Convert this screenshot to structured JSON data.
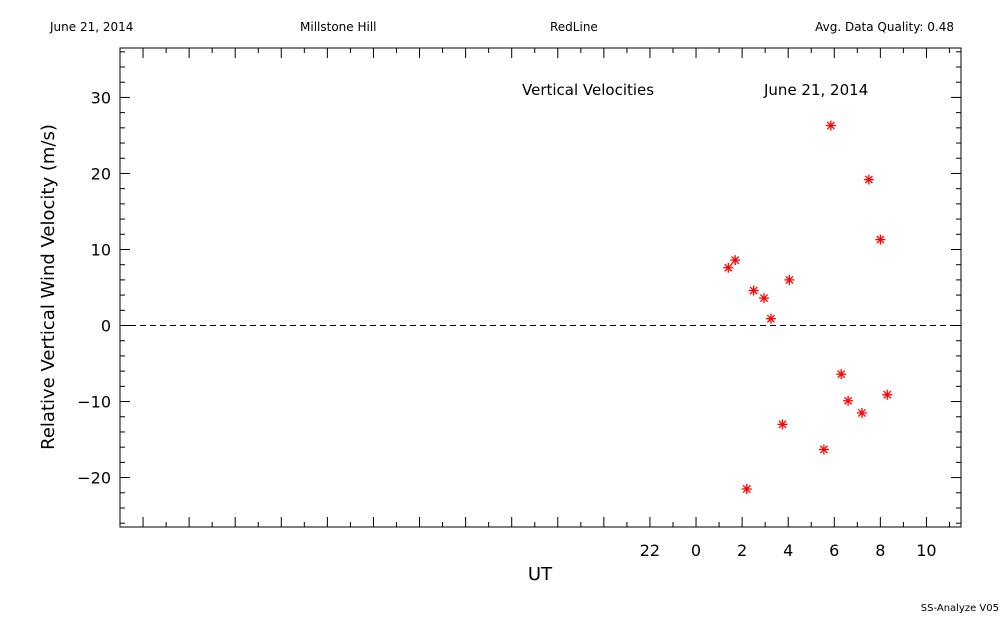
{
  "header": {
    "date": "June 21, 2014",
    "site": "Millstone Hill",
    "instrument": "RedLine",
    "quality": "Avg. Data Quality: 0.48"
  },
  "footer": {
    "software": "SS-Analyze V05"
  },
  "chart_data": {
    "type": "scatter",
    "title": "Vertical Velocities",
    "subtitle": "June 21, 2014",
    "xlabel": "UT",
    "ylabel": "Relative Vertical Wind Velocity (m/s)",
    "xlim": [
      -25,
      11.5
    ],
    "ylim": [
      -26.5,
      36.5
    ],
    "x_tick_values": [
      22,
      0,
      2,
      4,
      6,
      8,
      10
    ],
    "x_tick_labels": [
      "22",
      "0",
      "2",
      "4",
      "6",
      "8",
      "10"
    ],
    "y_ticks": [
      -20,
      -10,
      0,
      10,
      20,
      30
    ],
    "y_tick_labels": [
      "−20",
      "−10",
      "0",
      "10",
      "20",
      "30"
    ],
    "zero_line": "dashed",
    "marker": "asterisk",
    "marker_color": "#ff0000",
    "points": [
      {
        "x": 1.4,
        "y": 7.6
      },
      {
        "x": 1.7,
        "y": 8.6
      },
      {
        "x": 2.2,
        "y": -21.5
      },
      {
        "x": 2.5,
        "y": 4.6
      },
      {
        "x": 2.95,
        "y": 3.6
      },
      {
        "x": 3.25,
        "y": 0.9
      },
      {
        "x": 3.75,
        "y": -13.0
      },
      {
        "x": 4.05,
        "y": 6.0
      },
      {
        "x": 5.55,
        "y": -16.3
      },
      {
        "x": 5.85,
        "y": 26.3
      },
      {
        "x": 6.3,
        "y": -6.4
      },
      {
        "x": 6.6,
        "y": -9.9
      },
      {
        "x": 7.2,
        "y": -11.5
      },
      {
        "x": 7.5,
        "y": 19.2
      },
      {
        "x": 8.0,
        "y": 11.3
      },
      {
        "x": 8.3,
        "y": -9.1
      }
    ]
  }
}
